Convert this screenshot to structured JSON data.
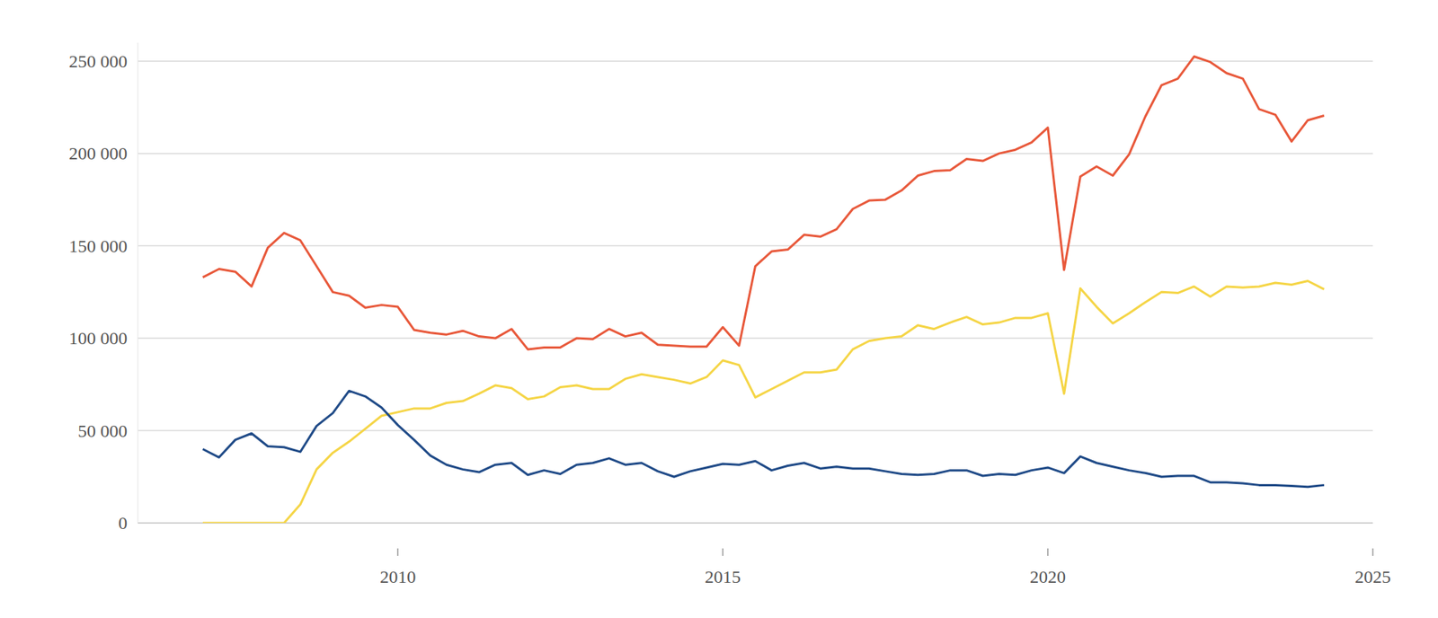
{
  "chart_data": {
    "type": "line",
    "x": [
      2007,
      2007.25,
      2007.5,
      2007.75,
      2008,
      2008.25,
      2008.5,
      2008.75,
      2009,
      2009.25,
      2009.5,
      2009.75,
      2010,
      2010.25,
      2010.5,
      2010.75,
      2011,
      2011.25,
      2011.5,
      2011.75,
      2012,
      2012.25,
      2012.5,
      2012.75,
      2013,
      2013.25,
      2013.5,
      2013.75,
      2014,
      2014.25,
      2014.5,
      2014.75,
      2015,
      2015.25,
      2015.5,
      2015.75,
      2016,
      2016.25,
      2016.5,
      2016.75,
      2017,
      2017.25,
      2017.5,
      2017.75,
      2018,
      2018.25,
      2018.5,
      2018.75,
      2019,
      2019.25,
      2019.5,
      2019.75,
      2020,
      2020.25,
      2020.5,
      2020.75,
      2021,
      2021.25,
      2021.5,
      2021.75,
      2022,
      2022.25,
      2022.5,
      2022.75,
      2023,
      2023.25,
      2023.5,
      2023.75,
      2024,
      2024.25
    ],
    "series": [
      {
        "color": "#e8583a",
        "values": [
          133000,
          137500,
          136000,
          128000,
          149000,
          157000,
          153000,
          139000,
          125000,
          123000,
          116500,
          118000,
          117000,
          104500,
          103000,
          102000,
          104000,
          101000,
          100000,
          105000,
          94000,
          95000,
          95000,
          100000,
          99500,
          105000,
          101000,
          103000,
          96500,
          96000,
          95500,
          95500,
          106000,
          96000,
          139000,
          147000,
          148000,
          156000,
          155000,
          159000,
          170000,
          174500,
          175000,
          180000,
          188000,
          190500,
          191000,
          197000,
          196000,
          200000,
          202000,
          206000,
          214000,
          137000,
          187500,
          193000,
          188000,
          199500,
          220000,
          237000,
          240500,
          252500,
          249500,
          243500,
          240500,
          224000,
          221000,
          206500,
          218000,
          220500
        ]
      },
      {
        "color": "#f5d546",
        "values": [
          0,
          0,
          0,
          0,
          0,
          0,
          10000,
          29000,
          38000,
          44000,
          51000,
          58000,
          60000,
          62000,
          62000,
          65000,
          66000,
          70000,
          74500,
          73000,
          67000,
          68500,
          73500,
          74500,
          72500,
          72500,
          78000,
          80500,
          79000,
          77500,
          75500,
          79000,
          88000,
          85500,
          68000,
          72500,
          77000,
          81500,
          81500,
          83000,
          94000,
          98500,
          100000,
          101000,
          107000,
          105000,
          108500,
          111500,
          107500,
          108500,
          111000,
          111000,
          113500,
          70000,
          127000,
          117000,
          108000,
          113500,
          119500,
          125000,
          124500,
          128000,
          122500,
          128000,
          127500,
          128000,
          130000,
          129000,
          131000,
          126500
        ]
      },
      {
        "color": "#1f4a87",
        "values": [
          40000,
          35500,
          45000,
          48500,
          41500,
          41000,
          38500,
          52500,
          59500,
          71500,
          68500,
          62500,
          53000,
          45000,
          36500,
          31500,
          29000,
          27500,
          31500,
          32500,
          26000,
          28500,
          26500,
          31500,
          32500,
          35000,
          31500,
          32500,
          28000,
          25000,
          28000,
          30000,
          32000,
          31500,
          33500,
          28500,
          31000,
          32500,
          29500,
          30500,
          29500,
          29500,
          28000,
          26500,
          26000,
          26500,
          28500,
          28500,
          25500,
          26500,
          26000,
          28500,
          30000,
          27000,
          36000,
          32500,
          30500,
          28500,
          27000,
          25000,
          25500,
          25500,
          22000,
          22000,
          21500,
          20500,
          20500,
          20000,
          19500,
          20500
        ]
      }
    ],
    "xlim": [
      2006,
      2025
    ],
    "xticks": [
      2010,
      2015,
      2020,
      2025
    ],
    "ylim": [
      0,
      260000
    ],
    "yticks": [
      0,
      {
        "value": 50000,
        "label": "50 000"
      },
      {
        "value": 100000,
        "label": "100 000"
      },
      {
        "value": 150000,
        "label": "150 000"
      },
      {
        "value": 200000,
        "label": "200 000"
      },
      {
        "value": 250000,
        "label": "250 000"
      }
    ],
    "grid": true
  }
}
